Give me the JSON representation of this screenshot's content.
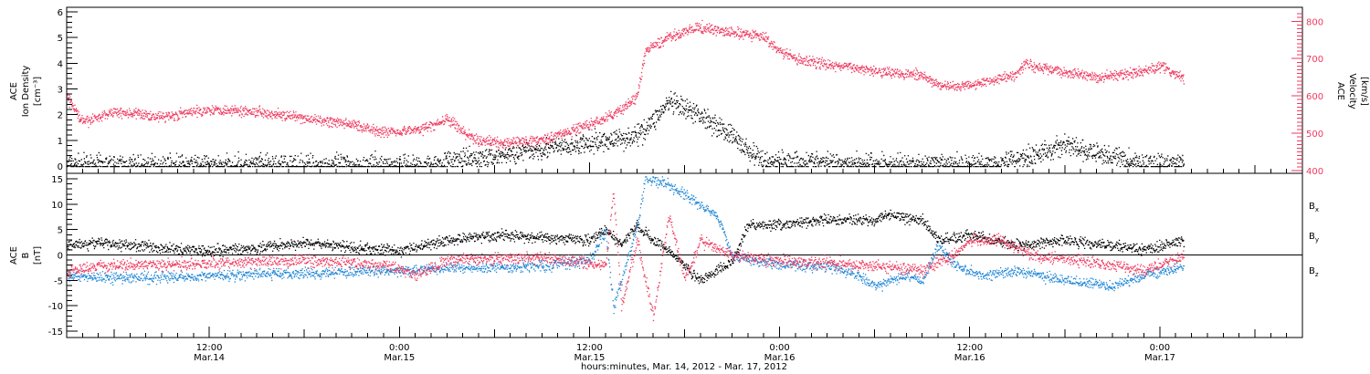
{
  "colors": {
    "black": "#000000",
    "pink": "#ee3a5f",
    "blue": "#1f86d6"
  },
  "chart_data": [
    {
      "type": "scatter",
      "panel": "top",
      "ylabel_left": [
        "ACE",
        "Ion Density",
        "[cm⁻³]"
      ],
      "ylabel_right": [
        "ACE",
        "Velocity",
        "[km/s]"
      ],
      "ylim_left": [
        0,
        6
      ],
      "ylim_right": [
        400,
        830
      ],
      "yticks_left": [
        "0",
        "1",
        "2",
        "3",
        "4",
        "5",
        "6"
      ],
      "yticks_right": [
        "400",
        "500",
        "600",
        "700",
        "800"
      ],
      "xlim_hours": [
        0,
        78
      ],
      "series": [
        {
          "axis": "left",
          "color": "#000000",
          "jitter": 0.35,
          "points": [
            [
              0,
              0.05
            ],
            [
              6,
              0.05
            ],
            [
              12,
              0.05
            ],
            [
              18,
              0.05
            ],
            [
              23,
              0.06
            ],
            [
              24,
              0.2
            ],
            [
              26,
              0.3
            ],
            [
              28,
              0.5
            ],
            [
              30,
              0.7
            ],
            [
              32,
              0.8
            ],
            [
              34,
              1.0
            ],
            [
              35,
              1.1
            ],
            [
              36,
              1.2
            ],
            [
              37,
              1.8
            ],
            [
              38,
              2.5
            ],
            [
              39,
              2.2
            ],
            [
              40,
              2.0
            ],
            [
              41,
              1.6
            ],
            [
              42,
              1.2
            ],
            [
              43,
              0.6
            ],
            [
              44,
              0.2
            ],
            [
              46,
              0.2
            ],
            [
              48,
              0.15
            ],
            [
              52,
              0.1
            ],
            [
              56,
              0.05
            ],
            [
              58,
              0.1
            ],
            [
              60,
              0.3
            ],
            [
              62,
              0.6
            ],
            [
              63,
              0.9
            ],
            [
              64,
              0.6
            ],
            [
              65,
              0.5
            ],
            [
              66,
              0.4
            ],
            [
              67,
              0.2
            ],
            [
              68,
              0.1
            ],
            [
              70.5,
              0.1
            ]
          ]
        },
        {
          "axis": "right",
          "color": "#ee3a5f",
          "jitter": 12,
          "points": [
            [
              0,
              600
            ],
            [
              1,
              530
            ],
            [
              3,
              560
            ],
            [
              6,
              545
            ],
            [
              9,
              565
            ],
            [
              12,
              560
            ],
            [
              15,
              540
            ],
            [
              18,
              525
            ],
            [
              20,
              505
            ],
            [
              22,
              510
            ],
            [
              23,
              520
            ],
            [
              24,
              540
            ],
            [
              25,
              505
            ],
            [
              26,
              480
            ],
            [
              28,
              475
            ],
            [
              30,
              485
            ],
            [
              32,
              510
            ],
            [
              34,
              540
            ],
            [
              35,
              565
            ],
            [
              36,
              600
            ],
            [
              36.5,
              720
            ],
            [
              38,
              760
            ],
            [
              40,
              785
            ],
            [
              42,
              770
            ],
            [
              44,
              760
            ],
            [
              45,
              720
            ],
            [
              46,
              700
            ],
            [
              48,
              685
            ],
            [
              50,
              675
            ],
            [
              52,
              665
            ],
            [
              54,
              655
            ],
            [
              55,
              630
            ],
            [
              56,
              625
            ],
            [
              58,
              640
            ],
            [
              60,
              660
            ],
            [
              60.5,
              690
            ],
            [
              61,
              680
            ],
            [
              63,
              665
            ],
            [
              65,
              650
            ],
            [
              67,
              660
            ],
            [
              69,
              680
            ],
            [
              70.5,
              650
            ]
          ]
        }
      ]
    },
    {
      "type": "scatter",
      "panel": "bottom",
      "ylabel_left": [
        "ACE",
        "B",
        "[nT]"
      ],
      "ylim": [
        -16,
        16
      ],
      "yticks": [
        "-15",
        "-10",
        "-5",
        "0",
        "5",
        "10",
        "15"
      ],
      "xlim_hours": [
        0,
        78
      ],
      "x_tick_labels": [
        {
          "hours": 9,
          "line1": "12:00",
          "line2": "Mar.14"
        },
        {
          "hours": 21,
          "line1": "0:00",
          "line2": "Mar.15"
        },
        {
          "hours": 33,
          "line1": "12:00",
          "line2": "Mar.15"
        },
        {
          "hours": 45,
          "line1": "0:00",
          "line2": "Mar.16"
        },
        {
          "hours": 57,
          "line1": "12:00",
          "line2": "Mar.16"
        },
        {
          "hours": 69,
          "line1": "0:00",
          "line2": "Mar.17"
        }
      ],
      "xlabel": "hours:minutes, Mar. 14, 2012 - Mar. 17, 2012",
      "series": [
        {
          "name": "Bx",
          "label_main": "B",
          "label_sub": "x",
          "color": "#000000",
          "jitter": 0.9,
          "points": [
            [
              0,
              2
            ],
            [
              2,
              2.5
            ],
            [
              6,
              1.5
            ],
            [
              9,
              1.0
            ],
            [
              12,
              1.5
            ],
            [
              15,
              2.5
            ],
            [
              18,
              1.5
            ],
            [
              21,
              1.0
            ],
            [
              24,
              3.0
            ],
            [
              27,
              4.0
            ],
            [
              30,
              3.5
            ],
            [
              33,
              3.0
            ],
            [
              34,
              5.0
            ],
            [
              35,
              2.0
            ],
            [
              36,
              6.0
            ],
            [
              37,
              3.0
            ],
            [
              38,
              1.0
            ],
            [
              39,
              -2.0
            ],
            [
              40,
              -5.0
            ],
            [
              41,
              -3.0
            ],
            [
              42,
              -1.0
            ],
            [
              43,
              6.0
            ],
            [
              45,
              6.0
            ],
            [
              48,
              7.0
            ],
            [
              51,
              7.0
            ],
            [
              52,
              8.0
            ],
            [
              54,
              7.0
            ],
            [
              55,
              3.0
            ],
            [
              57,
              4.0
            ],
            [
              60,
              2.0
            ],
            [
              63,
              3.0
            ],
            [
              66,
              2.0
            ],
            [
              68,
              1.0
            ],
            [
              70.5,
              3.0
            ]
          ]
        },
        {
          "name": "By",
          "label_main": "B",
          "label_sub": "y",
          "color": "#1f86d6",
          "jitter": 0.9,
          "points": [
            [
              0,
              -4.0
            ],
            [
              3,
              -4.5
            ],
            [
              9,
              -4.0
            ],
            [
              15,
              -3.5
            ],
            [
              21,
              -3.0
            ],
            [
              24,
              -2.5
            ],
            [
              27,
              -2.5
            ],
            [
              30,
              -2.0
            ],
            [
              33,
              -1.0
            ],
            [
              34,
              5.0
            ],
            [
              34.5,
              -10.0
            ],
            [
              35,
              -5.0
            ],
            [
              36,
              6.0
            ],
            [
              36.5,
              15.0
            ],
            [
              38,
              14.0
            ],
            [
              40,
              10.0
            ],
            [
              41,
              8.0
            ],
            [
              42,
              0.0
            ],
            [
              45,
              -2.0
            ],
            [
              48,
              -2.0
            ],
            [
              50,
              -4.0
            ],
            [
              51,
              -6.0
            ],
            [
              53,
              -4.0
            ],
            [
              54,
              -5.0
            ],
            [
              55,
              2.0
            ],
            [
              56,
              -2.0
            ],
            [
              58,
              -4.0
            ],
            [
              60,
              -3.0
            ],
            [
              63,
              -5.0
            ],
            [
              66,
              -6.0
            ],
            [
              68,
              -4.0
            ],
            [
              70.5,
              -2.0
            ]
          ]
        },
        {
          "name": "Bz",
          "label_main": "B",
          "label_sub": "z",
          "color": "#ee3a5f",
          "jitter": 1.0,
          "points": [
            [
              0,
              -3.0
            ],
            [
              3,
              -2.0
            ],
            [
              9,
              -1.5
            ],
            [
              15,
              -1.0
            ],
            [
              18,
              -1.5
            ],
            [
              21,
              -2.5
            ],
            [
              22,
              -4.0
            ],
            [
              24,
              -1.0
            ],
            [
              27,
              -0.5
            ],
            [
              30,
              -0.5
            ],
            [
              33,
              -1.5
            ],
            [
              34,
              -2.0
            ],
            [
              34.5,
              13.0
            ],
            [
              35,
              -10.0
            ],
            [
              36,
              3.0
            ],
            [
              37,
              -12.0
            ],
            [
              38,
              8.0
            ],
            [
              39,
              -5.0
            ],
            [
              40,
              3.0
            ],
            [
              42,
              0.0
            ],
            [
              45,
              -1.0
            ],
            [
              48,
              -1.5
            ],
            [
              51,
              -2.0
            ],
            [
              54,
              -3.0
            ],
            [
              56,
              0.0
            ],
            [
              57,
              3.0
            ],
            [
              59,
              3.0
            ],
            [
              61,
              0.0
            ],
            [
              64,
              -1.0
            ],
            [
              66,
              -2.0
            ],
            [
              68,
              -3.0
            ],
            [
              70.5,
              0.0
            ]
          ]
        }
      ]
    }
  ]
}
